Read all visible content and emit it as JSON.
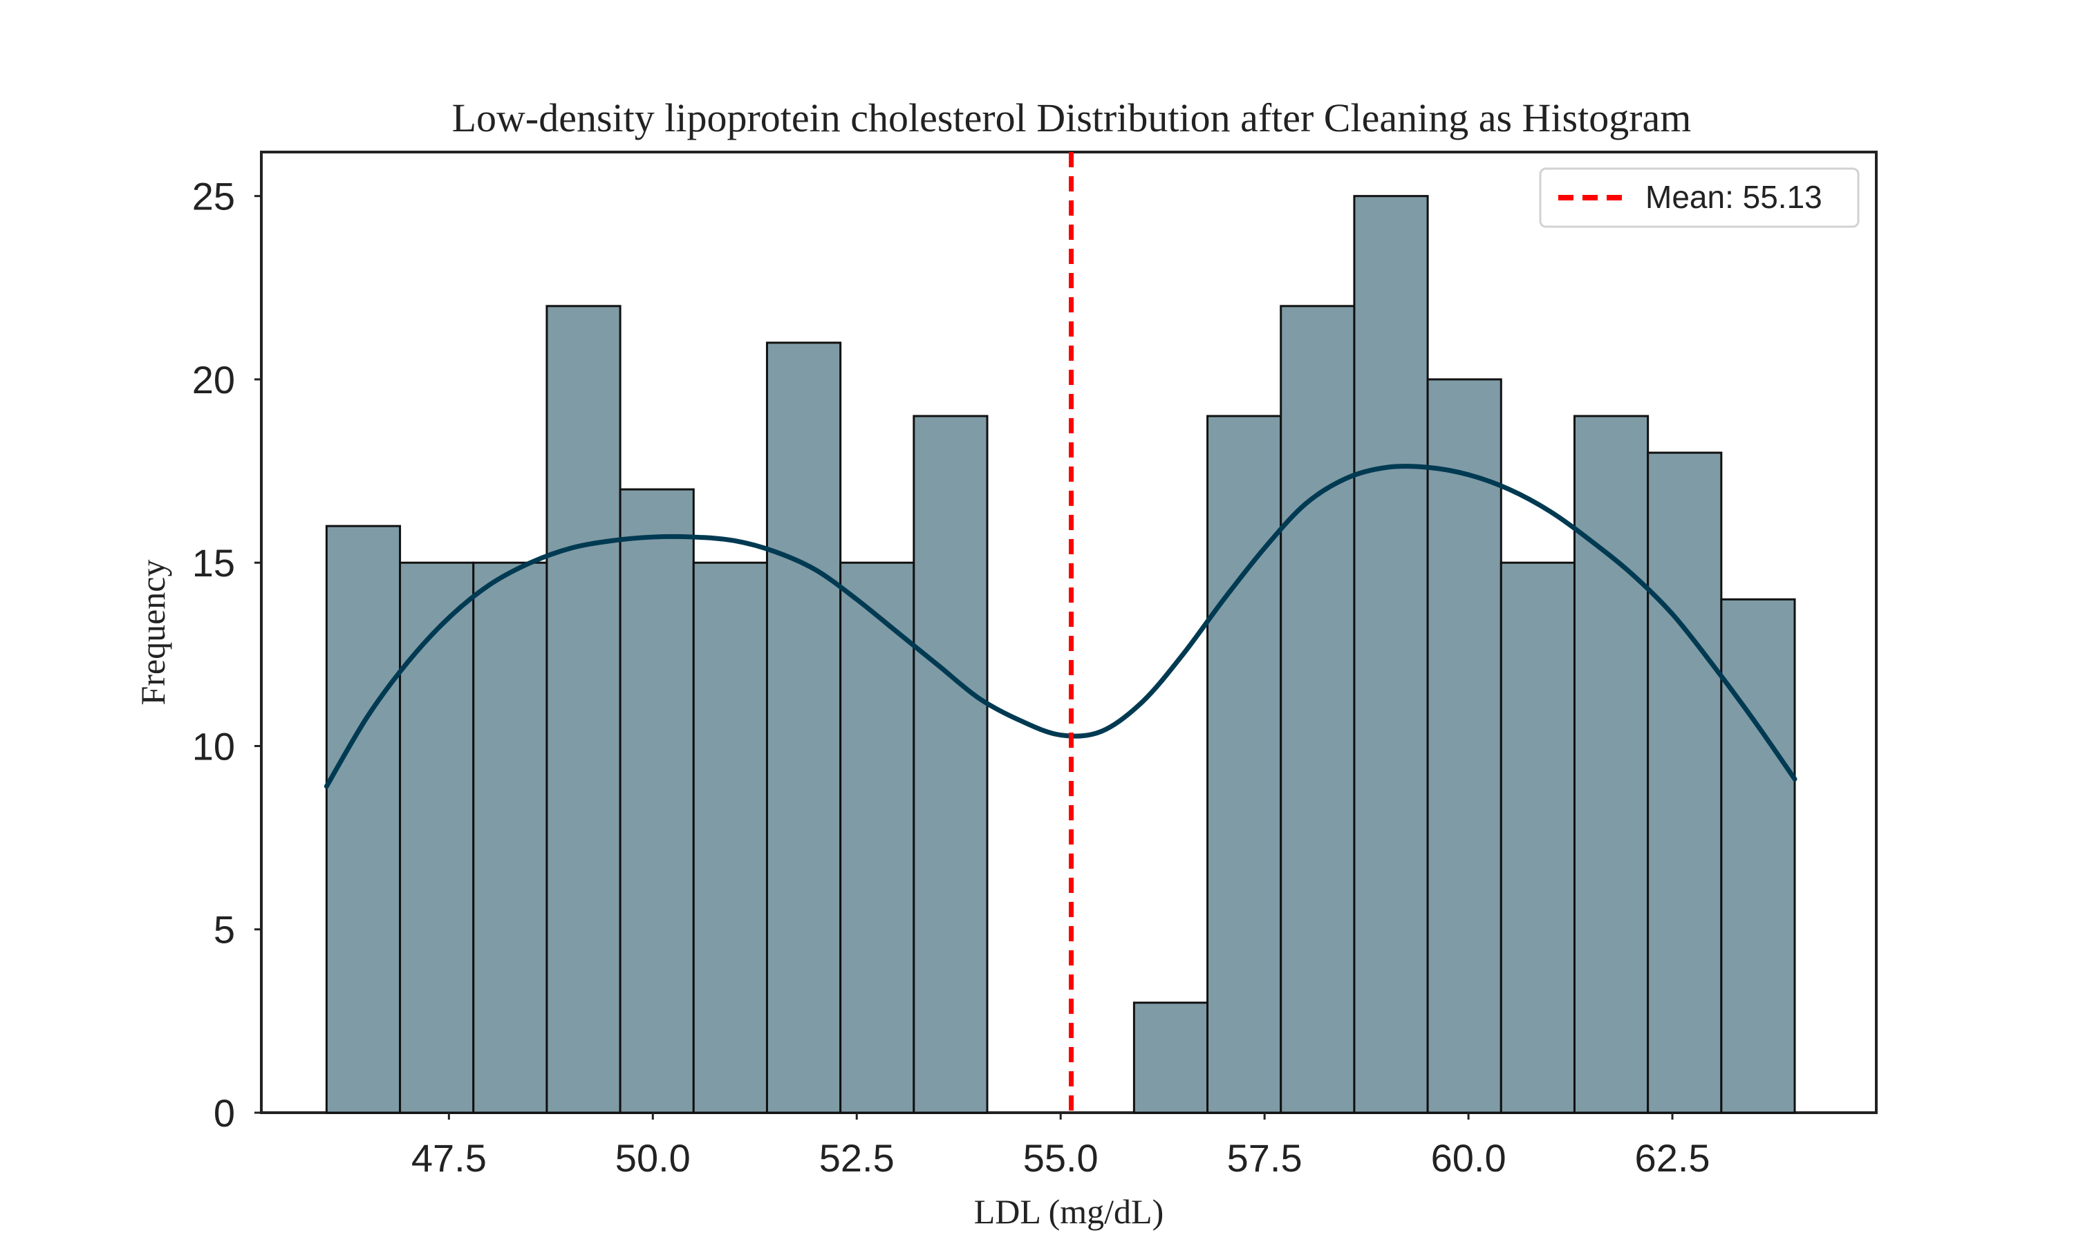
{
  "chart_data": {
    "type": "bar",
    "title": "Low-density lipoprotein cholesterol Distribution after Cleaning as Histogram",
    "xlabel": "LDL (mg/dL)",
    "ylabel": "Frequency",
    "xlim": [
      45.2,
      65.0
    ],
    "ylim": [
      0,
      26.2
    ],
    "xticks": [
      47.5,
      50.0,
      52.5,
      55.0,
      57.5,
      60.0,
      62.5
    ],
    "xtick_labels": [
      "47.5",
      "50.0",
      "52.5",
      "55.0",
      "57.5",
      "60.0",
      "62.5"
    ],
    "yticks": [
      0,
      5,
      10,
      15,
      20,
      25
    ],
    "ytick_labels": [
      "0",
      "5",
      "10",
      "15",
      "20",
      "25"
    ],
    "bin_edges": [
      46.0,
      46.9,
      47.8,
      48.7,
      49.6,
      50.5,
      51.4,
      52.3,
      53.2,
      54.1,
      55.0,
      55.9,
      56.8,
      57.7,
      58.6,
      59.5,
      60.4,
      61.3,
      62.2,
      63.1,
      64.0
    ],
    "values": [
      16,
      15,
      15,
      22,
      17,
      15,
      21,
      15,
      19,
      0,
      0,
      3,
      19,
      22,
      25,
      20,
      15,
      19,
      18,
      14
    ],
    "kde": {
      "x": [
        46.0,
        46.5,
        47.0,
        47.5,
        48.0,
        48.5,
        49.0,
        49.5,
        50.0,
        50.5,
        51.0,
        51.5,
        52.0,
        52.5,
        53.0,
        53.5,
        54.0,
        54.5,
        55.0,
        55.5,
        56.0,
        56.5,
        57.0,
        57.5,
        58.0,
        58.5,
        59.0,
        59.5,
        60.0,
        60.5,
        61.0,
        61.5,
        62.0,
        62.5,
        63.0,
        63.5,
        64.0
      ],
      "y": [
        8.9,
        10.8,
        12.3,
        13.5,
        14.4,
        15.0,
        15.4,
        15.6,
        15.7,
        15.7,
        15.6,
        15.3,
        14.8,
        14.0,
        13.1,
        12.2,
        11.3,
        10.7,
        10.3,
        10.4,
        11.2,
        12.5,
        14.0,
        15.4,
        16.6,
        17.3,
        17.6,
        17.6,
        17.4,
        17.0,
        16.4,
        15.6,
        14.7,
        13.6,
        12.2,
        10.7,
        9.1
      ]
    },
    "mean_line": {
      "value": 55.13,
      "label": "Mean: 55.13",
      "color": "#ff0000"
    },
    "bar_color": "#7f9ba6",
    "bar_edge_color": "#111111",
    "kde_color": "#003a52",
    "grid": false,
    "legend_position": "top-right"
  }
}
